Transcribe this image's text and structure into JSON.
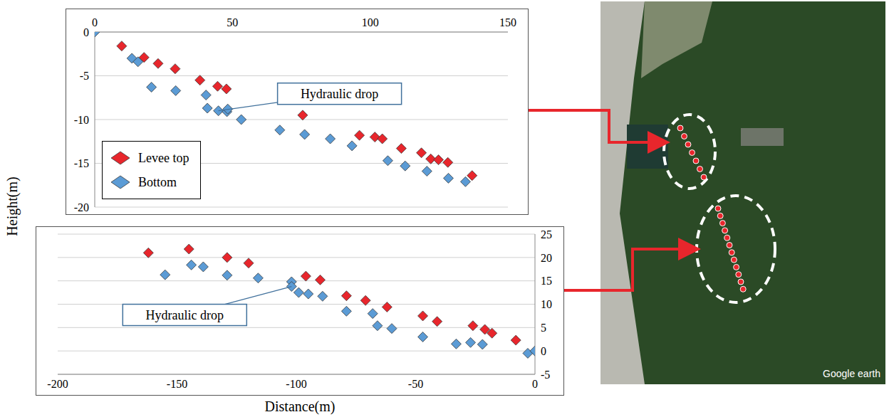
{
  "chart_data": [
    {
      "type": "scatter",
      "ylabel": "Height(m)",
      "xlim": [
        0,
        150
      ],
      "xticks": [
        0,
        50,
        100,
        150
      ],
      "ylim": [
        -20,
        0
      ],
      "yticks": [
        -20,
        -15,
        -10,
        -5,
        0
      ],
      "grid": true,
      "legend": "lower left",
      "marker": "diamond",
      "series": [
        {
          "name": "Levee top",
          "color": "#e8262c",
          "x": [
            9.8,
            17.9,
            23,
            29.2,
            38.2,
            44.6,
            47.8,
            75.5,
            96.1,
            101.7,
            104.4,
            111.3,
            118.6,
            122,
            124.8,
            128.2,
            137
          ],
          "values": [
            -1.6,
            -2.9,
            -3.6,
            -4.2,
            -5.5,
            -6.2,
            -6.5,
            -9.5,
            -11.8,
            -12,
            -12.2,
            -13.3,
            -13.8,
            -14.5,
            -14.6,
            -14.9,
            -16.4
          ]
        },
        {
          "name": "Bottom",
          "color": "#5b9bd5",
          "x": [
            0,
            13.5,
            15.7,
            20.6,
            29.4,
            40.4,
            40.9,
            44.9,
            48,
            48.3,
            53.2,
            67.2,
            76.2,
            85.5,
            93.4,
            106.4,
            112.7,
            120.6,
            128.4,
            134.6
          ],
          "values": [
            0,
            -3,
            -3.4,
            -6.3,
            -6.7,
            -7.2,
            -8.7,
            -9,
            -9.1,
            -8.8,
            -10,
            -11.2,
            -11.7,
            -12.2,
            -13,
            -14.7,
            -15.3,
            -15.9,
            -16.7,
            -17.1
          ]
        }
      ],
      "annotations": [
        {
          "text": "Hydraulic drop",
          "x": 44.9,
          "y": -9
        }
      ]
    },
    {
      "type": "scatter",
      "xlabel": "Distance(m)",
      "xlim": [
        -200,
        0
      ],
      "xticks": [
        -200,
        -150,
        -100,
        -50,
        0
      ],
      "ylim": [
        -5,
        25
      ],
      "yticks": [
        -5,
        0,
        5,
        10,
        15,
        20,
        25
      ],
      "grid": true,
      "marker": "diamond",
      "series": [
        {
          "color": "#e8262c",
          "x": [
            -162,
            -145,
            -129,
            -120,
            -96,
            -90,
            -79,
            -71,
            -62,
            -47,
            -41,
            -26,
            -21,
            -18,
            -8
          ],
          "values": [
            21,
            21.8,
            20,
            18.8,
            16,
            15.2,
            11.8,
            10.8,
            9.4,
            7.5,
            6.3,
            5.4,
            4.6,
            3.8,
            2.3
          ]
        },
        {
          "color": "#5b9bd5",
          "x": [
            -155,
            -144,
            -139,
            -129,
            -116,
            -102,
            -102,
            -99,
            -95,
            -89,
            -79,
            -68,
            -66,
            -60,
            -47,
            -33,
            -27,
            -22,
            -3,
            0
          ],
          "values": [
            16.3,
            18.4,
            18,
            16.2,
            15.6,
            14.8,
            13.8,
            12.5,
            12.2,
            11.7,
            8.5,
            8,
            5.4,
            4.8,
            3,
            1.5,
            1.8,
            1.4,
            -0.5,
            0
          ]
        }
      ],
      "annotations": [
        {
          "text": "Hydraulic drop",
          "x": -102,
          "y": 13.8
        }
      ]
    }
  ],
  "image": {
    "label": "Google earth"
  }
}
